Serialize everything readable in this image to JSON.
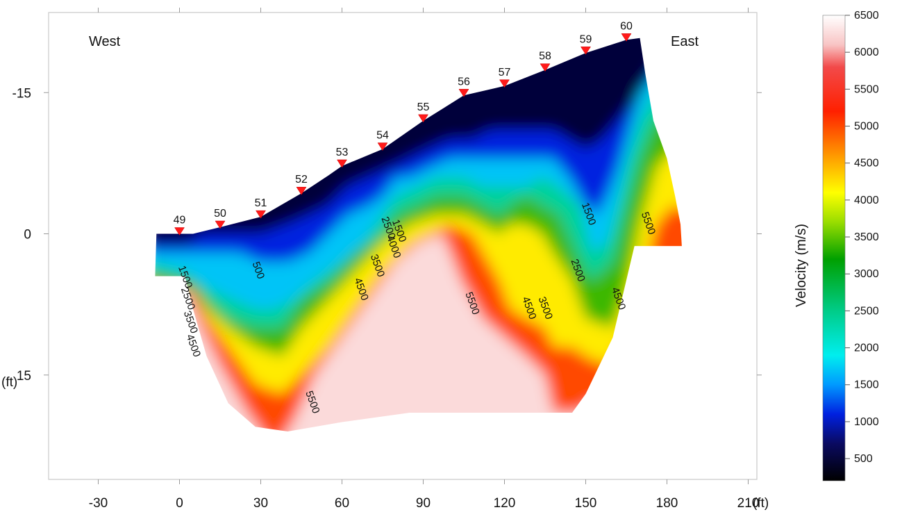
{
  "chart_data": {
    "type": "heatmap",
    "title": "",
    "xlabel": "",
    "ylabel": "",
    "x_unit": "(ft)",
    "y_unit": "(ft)",
    "xlim": [
      -40,
      215
    ],
    "ylim": [
      -21,
      26
    ],
    "x_ticks": [
      -30,
      0,
      30,
      60,
      90,
      120,
      150,
      180,
      210
    ],
    "x_tick_labels": [
      "-30",
      "0",
      "30",
      "60",
      "90",
      "120",
      "150",
      "180",
      "210"
    ],
    "y_ticks": [
      -15,
      0,
      15
    ],
    "y_tick_labels": [
      "-15",
      "0",
      "15"
    ],
    "y_inverted": true,
    "annotations": {
      "left": "West",
      "right": "East"
    },
    "stations": [
      {
        "label": "49",
        "x": 0,
        "elev": 0
      },
      {
        "label": "50",
        "x": 15,
        "elev": -0.7
      },
      {
        "label": "51",
        "x": 30,
        "elev": -1.8
      },
      {
        "label": "52",
        "x": 45,
        "elev": -4.3
      },
      {
        "label": "53",
        "x": 60,
        "elev": -7.2
      },
      {
        "label": "54",
        "x": 75,
        "elev": -9
      },
      {
        "label": "55",
        "x": 90,
        "elev": -12
      },
      {
        "label": "56",
        "x": 105,
        "elev": -14.7
      },
      {
        "label": "57",
        "x": 120,
        "elev": -15.7
      },
      {
        "label": "58",
        "x": 135,
        "elev": -17.4
      },
      {
        "label": "59",
        "x": 150,
        "elev": -19.2
      },
      {
        "label": "60",
        "x": 165,
        "elev": -20.6
      }
    ],
    "contours": [
      {
        "value": 1500,
        "label": "1500",
        "pos": [
          1,
          4.7
        ]
      },
      {
        "value": 2500,
        "label": "2500",
        "pos": [
          2,
          7
        ]
      },
      {
        "value": 3500,
        "label": "3500",
        "pos": [
          3,
          9.5
        ]
      },
      {
        "value": 4500,
        "label": "4500",
        "pos": [
          4,
          12
        ]
      },
      {
        "value": 500,
        "label": "500",
        "pos": [
          28,
          4
        ]
      },
      {
        "value": 4500,
        "label": "4500",
        "pos": [
          66,
          6
        ]
      },
      {
        "value": 3500,
        "label": "3500",
        "pos": [
          72,
          3.5
        ]
      },
      {
        "value": 4000,
        "label": "4000",
        "pos": [
          78,
          1.5
        ]
      },
      {
        "value": 2500,
        "label": "2500",
        "pos": [
          76,
          -0.5
        ]
      },
      {
        "value": 1500,
        "label": "1500",
        "pos": [
          80,
          -0.2
        ]
      },
      {
        "value": 5500,
        "label": "5500",
        "pos": [
          48,
          18
        ]
      },
      {
        "value": 5500,
        "label": "5500",
        "pos": [
          107,
          7.5
        ]
      },
      {
        "value": 4500,
        "label": "4500",
        "pos": [
          128,
          8
        ]
      },
      {
        "value": 3500,
        "label": "3500",
        "pos": [
          134,
          8
        ]
      },
      {
        "value": 2500,
        "label": "2500",
        "pos": [
          146,
          4
        ]
      },
      {
        "value": 1500,
        "label": "1500",
        "pos": [
          150,
          -2
        ]
      },
      {
        "value": 4500,
        "label": "4500",
        "pos": [
          161,
          7
        ]
      },
      {
        "value": 5500,
        "label": "5500",
        "pos": [
          172,
          -1
        ]
      }
    ],
    "colorbar": {
      "label": "Velocity (m/s)",
      "min": 200,
      "max": 6500,
      "ticks": [
        500,
        1000,
        1500,
        2000,
        2500,
        3000,
        3500,
        4000,
        4500,
        5000,
        5500,
        6000,
        6500
      ],
      "tick_labels": [
        "500",
        "1000",
        "1500",
        "2000",
        "2500",
        "3000",
        "3500",
        "4000",
        "4500",
        "5000",
        "5500",
        "6000",
        "6500"
      ],
      "colormap": [
        {
          "v": 200,
          "color": "#000000"
        },
        {
          "v": 700,
          "color": "#0a0a60"
        },
        {
          "v": 1100,
          "color": "#0020e0"
        },
        {
          "v": 1500,
          "color": "#0099ff"
        },
        {
          "v": 1900,
          "color": "#00eeee"
        },
        {
          "v": 2500,
          "color": "#00cc88"
        },
        {
          "v": 3200,
          "color": "#00a000"
        },
        {
          "v": 3700,
          "color": "#99dd00"
        },
        {
          "v": 4100,
          "color": "#ffff00"
        },
        {
          "v": 4600,
          "color": "#ff9900"
        },
        {
          "v": 5200,
          "color": "#ff2000"
        },
        {
          "v": 5800,
          "color": "#f24a4a"
        },
        {
          "v": 6100,
          "color": "#f8c4c4"
        },
        {
          "v": 6500,
          "color": "#ffffff"
        }
      ]
    }
  }
}
